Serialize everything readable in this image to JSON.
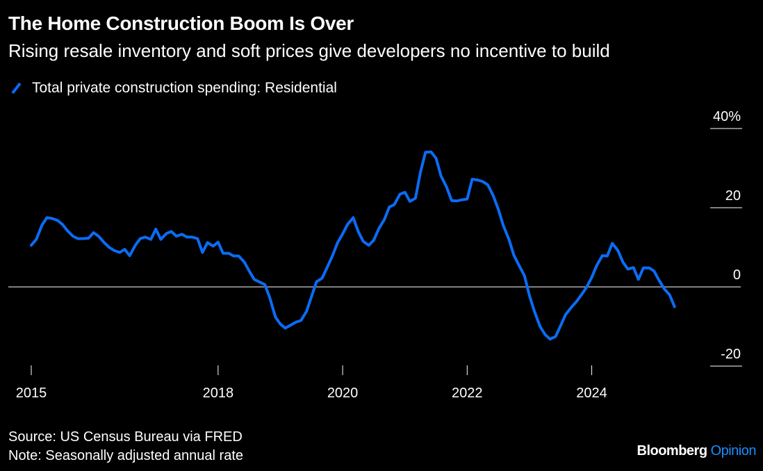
{
  "header": {
    "title": "The Home Construction Boom Is Over",
    "subtitle": "Rising resale inventory and soft prices give developers no incentive to build"
  },
  "footer": {
    "source": "Source: US Census Bureau via FRED",
    "note": "Note: Seasonally adjusted annual rate",
    "brand_main": "Bloomberg",
    "brand_sub": "Opinion"
  },
  "colors": {
    "background": "#000000",
    "text": "#ffffff",
    "series": "#0a6cf5",
    "brand_sub": "#1a8cff"
  },
  "chart_data": {
    "type": "line",
    "legend_position": "top-left",
    "grid": false,
    "zero_line": true,
    "xlim": [
      2015.0,
      2025.4
    ],
    "ylim": [
      -20,
      40
    ],
    "x_ticks": [
      {
        "value": 2015,
        "label": "2015"
      },
      {
        "value": 2018,
        "label": "2018"
      },
      {
        "value": 2020,
        "label": "2020"
      },
      {
        "value": 2022,
        "label": "2022"
      },
      {
        "value": 2024,
        "label": "2024"
      }
    ],
    "y_ticks": [
      {
        "value": 40,
        "label": "40%"
      },
      {
        "value": 20,
        "label": "20"
      },
      {
        "value": 0,
        "label": "0"
      },
      {
        "value": -20,
        "label": "-20"
      }
    ],
    "series": [
      {
        "name": "Total private construction spending: Residential",
        "color": "#0a6cf5",
        "points": [
          [
            2015.0,
            10.5
          ],
          [
            2015.08,
            12.0
          ],
          [
            2015.17,
            15.5
          ],
          [
            2015.25,
            17.5
          ],
          [
            2015.33,
            17.3
          ],
          [
            2015.42,
            16.8
          ],
          [
            2015.5,
            15.8
          ],
          [
            2015.58,
            14.2
          ],
          [
            2015.67,
            12.8
          ],
          [
            2015.75,
            12.2
          ],
          [
            2015.83,
            12.2
          ],
          [
            2015.92,
            12.3
          ],
          [
            2016.0,
            13.7
          ],
          [
            2016.08,
            12.8
          ],
          [
            2016.17,
            11.2
          ],
          [
            2016.25,
            10.0
          ],
          [
            2016.33,
            9.2
          ],
          [
            2016.42,
            8.7
          ],
          [
            2016.5,
            9.5
          ],
          [
            2016.58,
            7.9
          ],
          [
            2016.67,
            10.5
          ],
          [
            2016.75,
            12.2
          ],
          [
            2016.83,
            12.6
          ],
          [
            2016.92,
            12.0
          ],
          [
            2017.0,
            14.6
          ],
          [
            2017.08,
            12.0
          ],
          [
            2017.17,
            13.5
          ],
          [
            2017.25,
            14.0
          ],
          [
            2017.33,
            12.8
          ],
          [
            2017.42,
            13.3
          ],
          [
            2017.5,
            12.6
          ],
          [
            2017.58,
            12.6
          ],
          [
            2017.67,
            12.2
          ],
          [
            2017.75,
            8.7
          ],
          [
            2017.83,
            11.2
          ],
          [
            2017.92,
            10.3
          ],
          [
            2018.0,
            11.3
          ],
          [
            2018.08,
            8.5
          ],
          [
            2018.17,
            8.5
          ],
          [
            2018.25,
            7.8
          ],
          [
            2018.33,
            7.8
          ],
          [
            2018.42,
            6.3
          ],
          [
            2018.5,
            4.0
          ],
          [
            2018.58,
            1.9
          ],
          [
            2018.67,
            1.2
          ],
          [
            2018.75,
            0.6
          ],
          [
            2018.83,
            -2.7
          ],
          [
            2018.92,
            -7.6
          ],
          [
            2019.0,
            -9.4
          ],
          [
            2019.08,
            -10.4
          ],
          [
            2019.17,
            -9.6
          ],
          [
            2019.25,
            -8.9
          ],
          [
            2019.33,
            -8.5
          ],
          [
            2019.42,
            -6.2
          ],
          [
            2019.5,
            -2.4
          ],
          [
            2019.58,
            1.3
          ],
          [
            2019.67,
            2.2
          ],
          [
            2019.75,
            4.9
          ],
          [
            2019.83,
            7.6
          ],
          [
            2019.92,
            11.2
          ],
          [
            2020.0,
            13.4
          ],
          [
            2020.08,
            15.8
          ],
          [
            2020.17,
            17.5
          ],
          [
            2020.25,
            14.0
          ],
          [
            2020.33,
            11.5
          ],
          [
            2020.42,
            10.5
          ],
          [
            2020.5,
            11.8
          ],
          [
            2020.58,
            14.7
          ],
          [
            2020.67,
            17.0
          ],
          [
            2020.75,
            20.2
          ],
          [
            2020.83,
            20.8
          ],
          [
            2020.92,
            23.4
          ],
          [
            2021.0,
            23.9
          ],
          [
            2021.08,
            21.6
          ],
          [
            2021.17,
            22.4
          ],
          [
            2021.25,
            29.0
          ],
          [
            2021.33,
            34.0
          ],
          [
            2021.42,
            34.1
          ],
          [
            2021.5,
            32.5
          ],
          [
            2021.58,
            28.0
          ],
          [
            2021.67,
            25.2
          ],
          [
            2021.75,
            21.8
          ],
          [
            2021.83,
            21.7
          ],
          [
            2021.92,
            22.0
          ],
          [
            2022.0,
            22.2
          ],
          [
            2022.08,
            27.2
          ],
          [
            2022.17,
            27.0
          ],
          [
            2022.25,
            26.6
          ],
          [
            2022.33,
            25.8
          ],
          [
            2022.42,
            23.0
          ],
          [
            2022.5,
            19.6
          ],
          [
            2022.58,
            15.5
          ],
          [
            2022.67,
            12.0
          ],
          [
            2022.75,
            8.0
          ],
          [
            2022.83,
            5.5
          ],
          [
            2022.92,
            2.8
          ],
          [
            2023.0,
            -2.2
          ],
          [
            2023.08,
            -6.2
          ],
          [
            2023.17,
            -10.0
          ],
          [
            2023.25,
            -12.0
          ],
          [
            2023.33,
            -13.2
          ],
          [
            2023.42,
            -12.5
          ],
          [
            2023.5,
            -9.8
          ],
          [
            2023.58,
            -7.0
          ],
          [
            2023.67,
            -5.2
          ],
          [
            2023.75,
            -3.8
          ],
          [
            2023.83,
            -2.1
          ],
          [
            2023.92,
            0.0
          ],
          [
            2024.0,
            2.4
          ],
          [
            2024.08,
            5.4
          ],
          [
            2024.17,
            7.9
          ],
          [
            2024.25,
            7.8
          ],
          [
            2024.33,
            11.0
          ],
          [
            2024.42,
            9.2
          ],
          [
            2024.5,
            6.3
          ],
          [
            2024.58,
            4.5
          ],
          [
            2024.67,
            4.9
          ],
          [
            2024.75,
            1.9
          ],
          [
            2024.83,
            4.8
          ],
          [
            2024.92,
            4.8
          ],
          [
            2025.0,
            4.0
          ],
          [
            2025.08,
            1.7
          ],
          [
            2025.17,
            -0.6
          ],
          [
            2025.25,
            -2.0
          ],
          [
            2025.33,
            -5.0
          ]
        ]
      }
    ]
  }
}
